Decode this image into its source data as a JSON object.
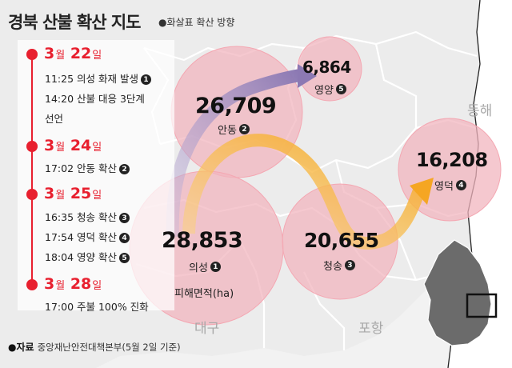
{
  "title": "경북 산불 확산 지도",
  "legend": {
    "label": "●화살표 확산 방향"
  },
  "timeline": [
    {
      "month": "3",
      "month_unit": "월",
      "day": "22",
      "day_unit": "일",
      "events": [
        {
          "text": "11:25 의성 화재 발생",
          "ref": "1"
        },
        {
          "text": "14:20 산불 대응 3단계",
          "ref": ""
        },
        {
          "text": "선언",
          "ref": ""
        }
      ]
    },
    {
      "month": "3",
      "month_unit": "월",
      "day": "24",
      "day_unit": "일",
      "events": [
        {
          "text": "17:02 안동 확산",
          "ref": "2"
        }
      ]
    },
    {
      "month": "3",
      "month_unit": "월",
      "day": "25",
      "day_unit": "일",
      "events": [
        {
          "text": "16:35 청송 확산",
          "ref": "3"
        },
        {
          "text": "17:54 영덕 확산",
          "ref": "4"
        },
        {
          "text": "18:04 영양 확산",
          "ref": "5"
        }
      ]
    },
    {
      "month": "3",
      "month_unit": "월",
      "day": "28",
      "day_unit": "일",
      "events": [
        {
          "text": "17:00 주불 100% 진화",
          "ref": ""
        }
      ]
    }
  ],
  "areas": [
    {
      "id": "uiseong",
      "name": "의성",
      "ref": "1",
      "value": "28,853",
      "value_num": 28853
    },
    {
      "id": "andong",
      "name": "안동",
      "ref": "2",
      "value": "26,709",
      "value_num": 26709
    },
    {
      "id": "cheongsong",
      "name": "청송",
      "ref": "3",
      "value": "20,655",
      "value_num": 20655
    },
    {
      "id": "yeongdeok",
      "name": "영덕",
      "ref": "4",
      "value": "16,208",
      "value_num": 16208
    },
    {
      "id": "yeongyang",
      "name": "영양",
      "ref": "5",
      "value": "6,864",
      "value_num": 6864
    }
  ],
  "unit_label": "피해면적(ha)",
  "regions": {
    "daegu": "대구",
    "pohang": "포항",
    "east_sea": "동해"
  },
  "source": {
    "label": "●자료",
    "text": "중앙재난안전대책본부(5월 2일 기준)"
  },
  "colors": {
    "accent": "#e8202f",
    "circle": "#f2b6bf",
    "arrow_purple": "#9a86bd",
    "arrow_orange": "#f7b23a"
  }
}
